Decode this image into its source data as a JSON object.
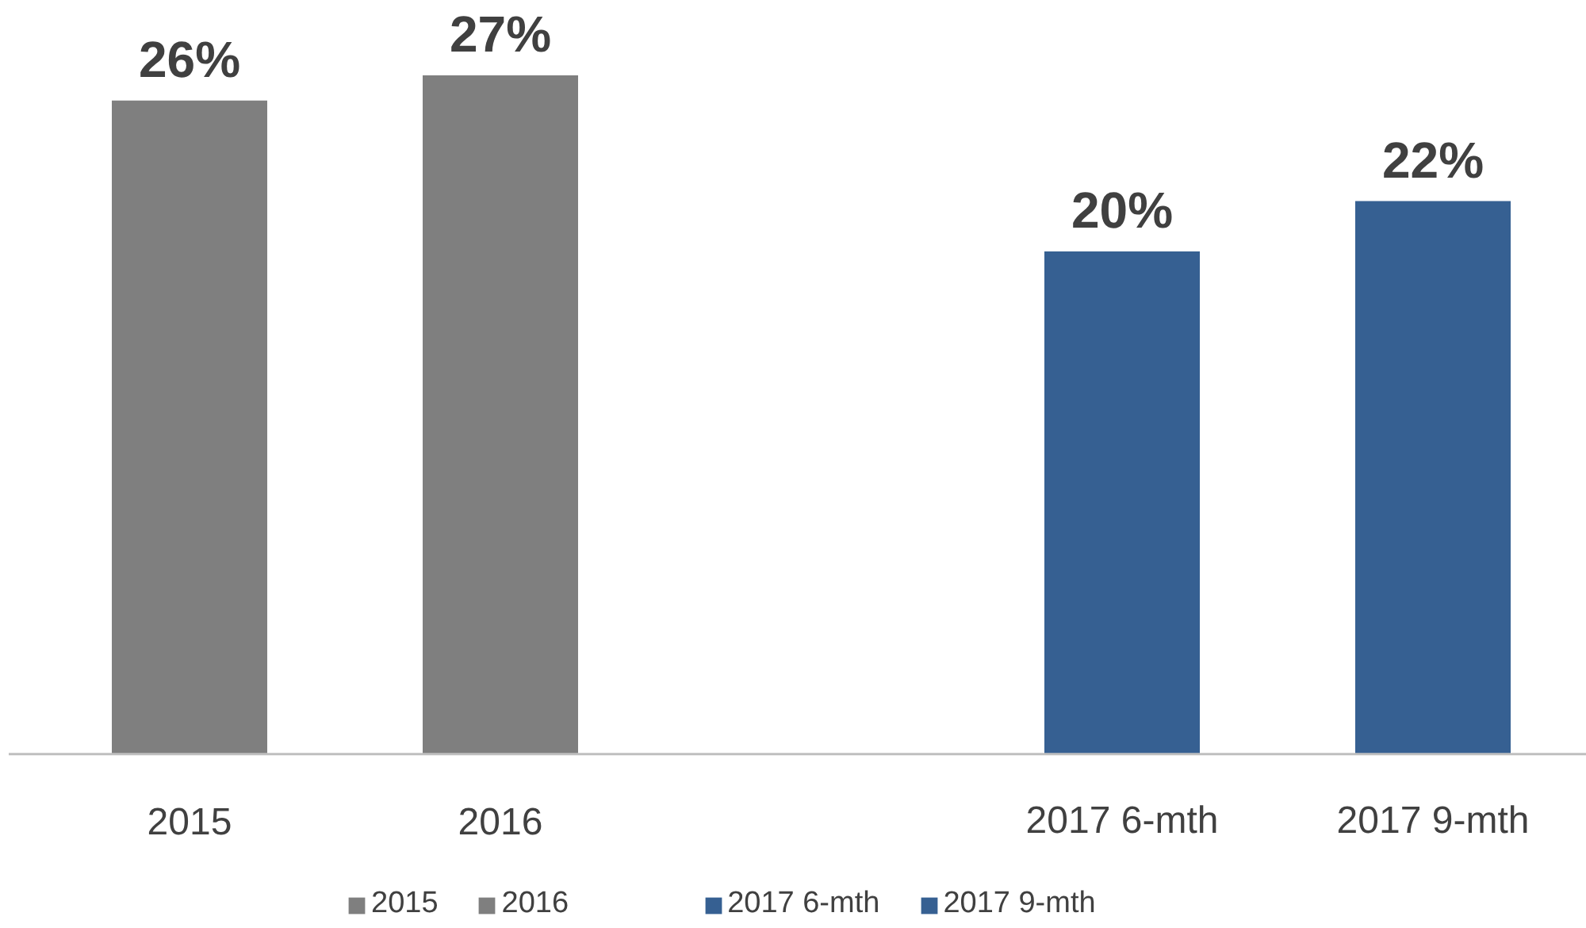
{
  "chart_data": {
    "type": "bar",
    "categories": [
      "2015",
      "2016",
      null,
      "2017 6-mth",
      "2017 9-mth"
    ],
    "series": [
      {
        "name": "2015",
        "color": "#7f7f7f",
        "values": [
          26,
          null,
          null,
          null,
          null
        ],
        "value_labels": [
          "26%",
          null,
          null,
          null,
          null
        ]
      },
      {
        "name": "2016",
        "color": "#7f7f7f",
        "values": [
          null,
          27,
          null,
          null,
          null
        ],
        "value_labels": [
          null,
          "27%",
          null,
          null,
          null
        ]
      },
      {
        "color": "#7f7f7f",
        "values": [
          null,
          null,
          null,
          null,
          null
        ]
      },
      {
        "name": "2017 6-mth",
        "color": "#366092",
        "values": [
          null,
          null,
          null,
          20,
          null
        ],
        "value_labels": [
          null,
          null,
          null,
          "20%",
          null
        ]
      },
      {
        "name": "2017 9-mth",
        "color": "#366092",
        "values": [
          null,
          null,
          null,
          null,
          22
        ],
        "value_labels": [
          null,
          null,
          null,
          null,
          "22%"
        ]
      }
    ],
    "legend": "bottom",
    "grid": false
  }
}
